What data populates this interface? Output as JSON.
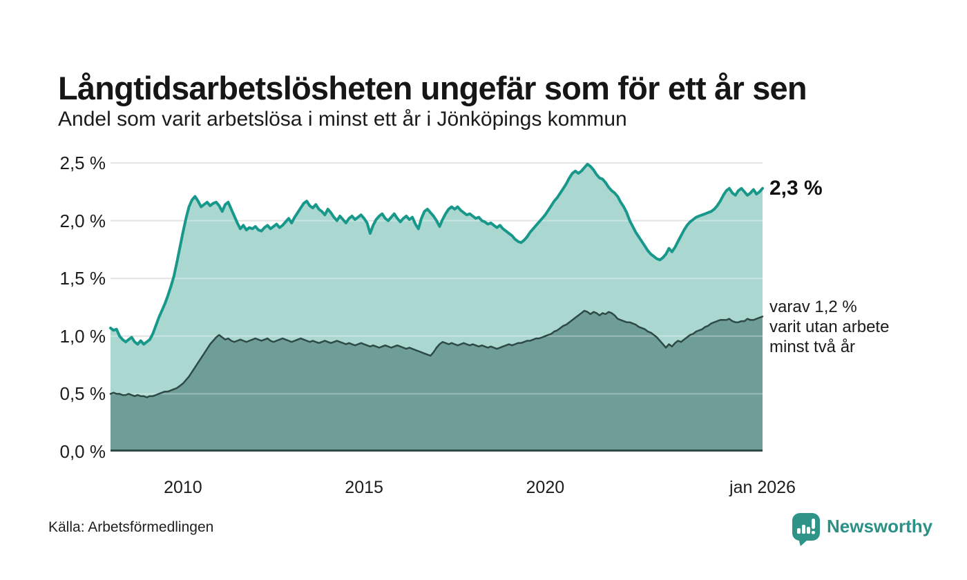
{
  "header": {
    "title": "Långtidsarbetslösheten ungefär som för ett år sen",
    "subtitle": "Andel som varit arbetslösa i minst ett år i Jönköpings kommun"
  },
  "footer": {
    "source": "Källa: Arbetsförmedlingen",
    "logo_text": "Newsworthy"
  },
  "colors": {
    "series1_line": "#17988a",
    "series1_fill": "#abd7d1",
    "series2_line": "#2d4a45",
    "series2_fill": "#6f9d98",
    "grid": "#e3e3e7",
    "grid_overlay": "rgba(255,255,255,0.32)",
    "axis": "#2d4a45",
    "accent_text": "#2b9187"
  },
  "chart_data": {
    "type": "area",
    "x_unit": "monthly",
    "x_range": [
      2008,
      2026
    ],
    "ylim": [
      0,
      2.5
    ],
    "grid": true,
    "y_ticks": [
      {
        "value": 2.5,
        "label": "2,5 %"
      },
      {
        "value": 2.0,
        "label": "2,0 %"
      },
      {
        "value": 1.5,
        "label": "1,5 %"
      },
      {
        "value": 1.0,
        "label": "1,0 %"
      },
      {
        "value": 0.5,
        "label": "0,5 %"
      },
      {
        "value": 0.0,
        "label": "0,0 %"
      }
    ],
    "x_ticks": [
      {
        "value": 2010,
        "label": "2010"
      },
      {
        "value": 2015,
        "label": "2015"
      },
      {
        "value": 2020,
        "label": "2020"
      },
      {
        "value": 2026,
        "label": "jan 2026"
      }
    ],
    "series": [
      {
        "name": "arbetslösa minst ett år",
        "end_label": "2,3 %",
        "values": [
          1.07,
          1.05,
          1.06,
          1.0,
          0.97,
          0.95,
          0.97,
          0.99,
          0.95,
          0.93,
          0.96,
          0.93,
          0.95,
          0.97,
          1.02,
          1.09,
          1.16,
          1.22,
          1.28,
          1.35,
          1.43,
          1.52,
          1.64,
          1.77,
          1.9,
          2.02,
          2.12,
          2.18,
          2.21,
          2.17,
          2.12,
          2.14,
          2.16,
          2.13,
          2.15,
          2.16,
          2.13,
          2.08,
          2.14,
          2.16,
          2.1,
          2.04,
          1.98,
          1.93,
          1.96,
          1.92,
          1.94,
          1.93,
          1.95,
          1.92,
          1.91,
          1.94,
          1.96,
          1.93,
          1.95,
          1.97,
          1.94,
          1.96,
          1.99,
          2.02,
          1.98,
          2.03,
          2.07,
          2.11,
          2.15,
          2.17,
          2.13,
          2.11,
          2.14,
          2.1,
          2.08,
          2.05,
          2.1,
          2.07,
          2.03,
          2.0,
          2.04,
          2.01,
          1.98,
          2.02,
          2.04,
          2.01,
          2.03,
          2.05,
          2.02,
          1.98,
          1.89,
          1.96,
          2.01,
          2.04,
          2.06,
          2.02,
          2.0,
          2.03,
          2.06,
          2.02,
          1.99,
          2.02,
          2.04,
          2.01,
          2.03,
          1.97,
          1.93,
          2.02,
          2.08,
          2.1,
          2.07,
          2.04,
          2.0,
          1.95,
          2.01,
          2.06,
          2.1,
          2.12,
          2.1,
          2.12,
          2.09,
          2.07,
          2.05,
          2.06,
          2.04,
          2.02,
          2.03,
          2.0,
          1.99,
          1.97,
          1.98,
          1.96,
          1.94,
          1.96,
          1.93,
          1.91,
          1.89,
          1.87,
          1.84,
          1.82,
          1.81,
          1.83,
          1.86,
          1.9,
          1.93,
          1.96,
          1.99,
          2.02,
          2.05,
          2.09,
          2.13,
          2.17,
          2.2,
          2.24,
          2.28,
          2.32,
          2.37,
          2.41,
          2.43,
          2.41,
          2.43,
          2.46,
          2.49,
          2.47,
          2.44,
          2.4,
          2.37,
          2.36,
          2.33,
          2.29,
          2.26,
          2.24,
          2.21,
          2.16,
          2.12,
          2.07,
          2.0,
          1.95,
          1.9,
          1.86,
          1.82,
          1.78,
          1.74,
          1.71,
          1.69,
          1.67,
          1.66,
          1.68,
          1.71,
          1.76,
          1.73,
          1.77,
          1.82,
          1.87,
          1.92,
          1.96,
          1.99,
          2.01,
          2.03,
          2.04,
          2.05,
          2.06,
          2.07,
          2.08,
          2.1,
          2.13,
          2.17,
          2.22,
          2.26,
          2.28,
          2.24,
          2.22,
          2.26,
          2.28,
          2.25,
          2.22,
          2.24,
          2.27,
          2.23,
          2.25,
          2.28
        ]
      },
      {
        "name": "varav utan arbete minst två år",
        "end_label_lines": [
          "varav 1,2 %",
          "varit utan arbete",
          "minst två år"
        ],
        "values": [
          0.5,
          0.51,
          0.5,
          0.5,
          0.49,
          0.49,
          0.5,
          0.49,
          0.48,
          0.49,
          0.48,
          0.48,
          0.47,
          0.48,
          0.48,
          0.49,
          0.5,
          0.51,
          0.52,
          0.52,
          0.53,
          0.54,
          0.55,
          0.57,
          0.59,
          0.62,
          0.65,
          0.69,
          0.73,
          0.77,
          0.81,
          0.85,
          0.89,
          0.93,
          0.96,
          0.99,
          1.01,
          0.99,
          0.97,
          0.98,
          0.96,
          0.95,
          0.96,
          0.97,
          0.96,
          0.95,
          0.96,
          0.97,
          0.98,
          0.97,
          0.96,
          0.97,
          0.98,
          0.96,
          0.95,
          0.96,
          0.97,
          0.98,
          0.97,
          0.96,
          0.95,
          0.96,
          0.97,
          0.98,
          0.97,
          0.96,
          0.95,
          0.96,
          0.95,
          0.94,
          0.95,
          0.96,
          0.95,
          0.94,
          0.95,
          0.96,
          0.95,
          0.94,
          0.93,
          0.94,
          0.93,
          0.92,
          0.93,
          0.94,
          0.93,
          0.92,
          0.91,
          0.92,
          0.91,
          0.9,
          0.91,
          0.92,
          0.91,
          0.9,
          0.91,
          0.92,
          0.91,
          0.9,
          0.89,
          0.9,
          0.89,
          0.88,
          0.87,
          0.86,
          0.85,
          0.84,
          0.83,
          0.86,
          0.9,
          0.93,
          0.95,
          0.94,
          0.93,
          0.94,
          0.93,
          0.92,
          0.93,
          0.94,
          0.93,
          0.92,
          0.93,
          0.92,
          0.91,
          0.92,
          0.91,
          0.9,
          0.91,
          0.9,
          0.89,
          0.9,
          0.91,
          0.92,
          0.93,
          0.92,
          0.93,
          0.94,
          0.94,
          0.95,
          0.96,
          0.96,
          0.97,
          0.98,
          0.98,
          0.99,
          1.0,
          1.01,
          1.02,
          1.04,
          1.05,
          1.07,
          1.09,
          1.1,
          1.12,
          1.14,
          1.16,
          1.18,
          1.2,
          1.22,
          1.21,
          1.19,
          1.21,
          1.2,
          1.18,
          1.2,
          1.19,
          1.21,
          1.2,
          1.18,
          1.15,
          1.14,
          1.13,
          1.12,
          1.12,
          1.11,
          1.1,
          1.08,
          1.07,
          1.06,
          1.04,
          1.03,
          1.01,
          0.99,
          0.96,
          0.93,
          0.9,
          0.93,
          0.91,
          0.94,
          0.96,
          0.95,
          0.97,
          0.99,
          1.01,
          1.02,
          1.04,
          1.05,
          1.06,
          1.08,
          1.09,
          1.11,
          1.12,
          1.13,
          1.14,
          1.14,
          1.14,
          1.15,
          1.13,
          1.12,
          1.12,
          1.13,
          1.13,
          1.15,
          1.14,
          1.14,
          1.15,
          1.16,
          1.17
        ]
      }
    ]
  }
}
